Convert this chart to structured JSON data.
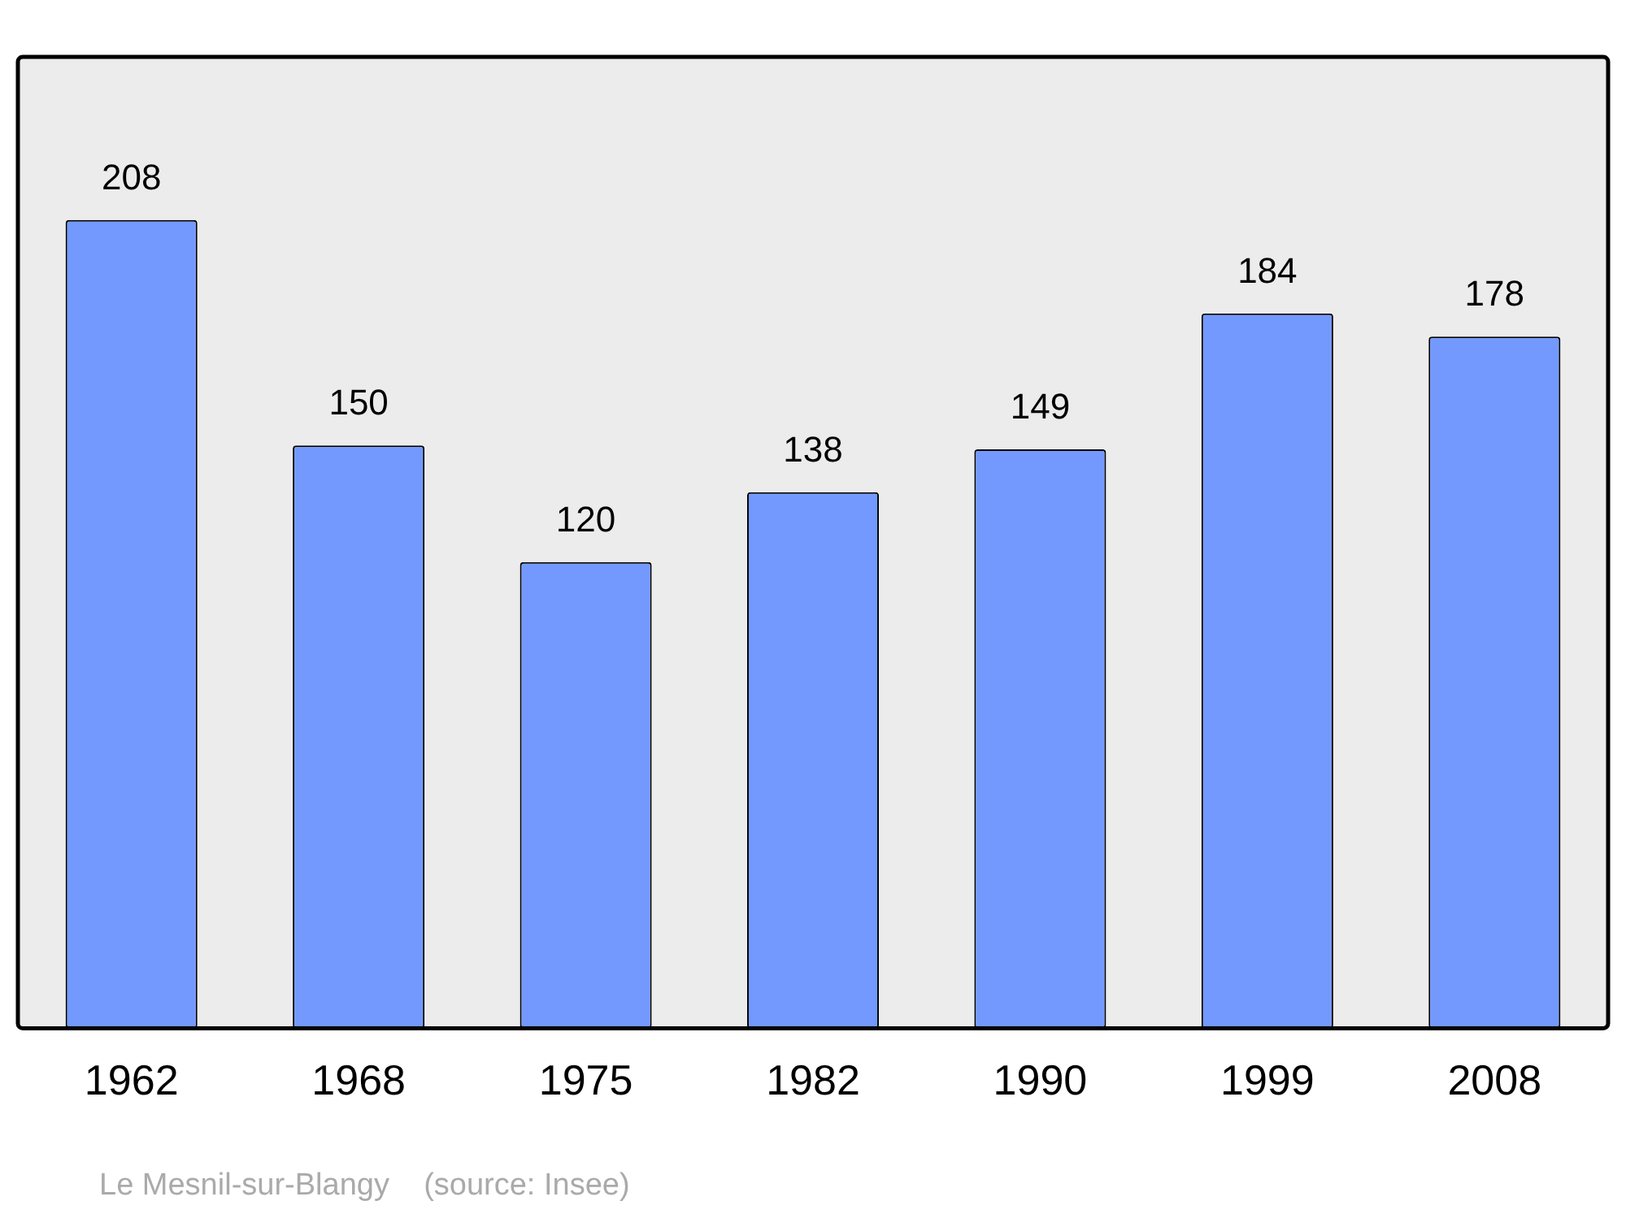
{
  "chart_data": {
    "type": "bar",
    "categories": [
      "1962",
      "1968",
      "1975",
      "1982",
      "1990",
      "1999",
      "2008"
    ],
    "values": [
      208,
      150,
      120,
      138,
      149,
      184,
      178
    ],
    "color": "#7399ff",
    "data_labels": true,
    "grid": false,
    "legend": false,
    "annotations": [
      "Le Mesnil-sur-Blangy    (source: Insee)"
    ]
  }
}
